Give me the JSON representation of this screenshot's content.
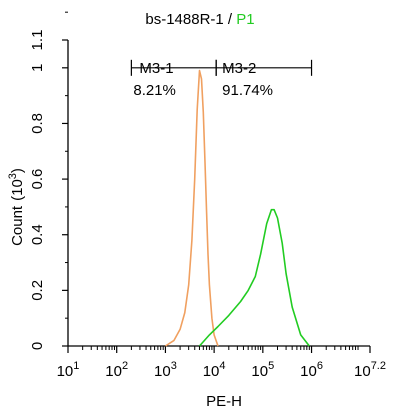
{
  "chart_data": {
    "type": "line",
    "title": {
      "sample": "bs-1488R-1",
      "separator": " / ",
      "gate": "P1",
      "gate_color": "#22cc22"
    },
    "xlabel": "PE-H",
    "ylabel": "Count",
    "ylabel_unit": "(10",
    "ylabel_unit_exp": "3",
    "ylabel_unit_close": ")",
    "x_scale": "log",
    "xlim": [
      10,
      15848931.9
    ],
    "ylim": [
      0,
      1.1
    ],
    "x_ticks": [
      {
        "value": 10,
        "base": "10",
        "exp": "1"
      },
      {
        "value": 100,
        "base": "10",
        "exp": "2"
      },
      {
        "value": 1000,
        "base": "10",
        "exp": "3"
      },
      {
        "value": 10000,
        "base": "10",
        "exp": "4"
      },
      {
        "value": 100000,
        "base": "10",
        "exp": "5"
      },
      {
        "value": 1000000,
        "base": "10",
        "exp": "6"
      },
      {
        "value": 15848931.9,
        "base": "10",
        "exp": "7.2"
      }
    ],
    "y_ticks": [
      {
        "value": 0,
        "label": "0"
      },
      {
        "value": 0.2,
        "label": "0.2"
      },
      {
        "value": 0.4,
        "label": "0.4"
      },
      {
        "value": 0.6,
        "label": "0.6"
      },
      {
        "value": 0.8,
        "label": "0.8"
      },
      {
        "value": 1,
        "label": "1"
      },
      {
        "value": 1.1,
        "label": "1.1"
      }
    ],
    "series": [
      {
        "color": "#f0a060",
        "x": [
          1000,
          1500,
          2000,
          2500,
          3000,
          3500,
          4000,
          4500,
          5000,
          5500,
          6000,
          6500,
          7000,
          7500,
          8000,
          9000,
          10000,
          12000
        ],
        "y": [
          0,
          0.02,
          0.06,
          0.12,
          0.22,
          0.38,
          0.6,
          0.85,
          0.99,
          0.96,
          0.84,
          0.66,
          0.48,
          0.33,
          0.22,
          0.1,
          0.04,
          0
        ]
      },
      {
        "color": "#22cc22",
        "x": [
          5000,
          8000,
          12000,
          20000,
          35000,
          50000,
          70000,
          90000,
          120000,
          150000,
          170000,
          200000,
          250000,
          300000,
          400000,
          600000,
          900000
        ],
        "y": [
          0,
          0.04,
          0.07,
          0.11,
          0.16,
          0.2,
          0.25,
          0.33,
          0.44,
          0.49,
          0.49,
          0.46,
          0.37,
          0.26,
          0.14,
          0.04,
          0
        ]
      }
    ],
    "markers": [
      {
        "name": "M3-1",
        "percent": "8.21%",
        "x_start": 200,
        "x_end": 11000
      },
      {
        "name": "M3-2",
        "percent": "91.74%",
        "x_start": 11000,
        "x_end": 1000000
      }
    ],
    "marker_y": 1.0
  }
}
